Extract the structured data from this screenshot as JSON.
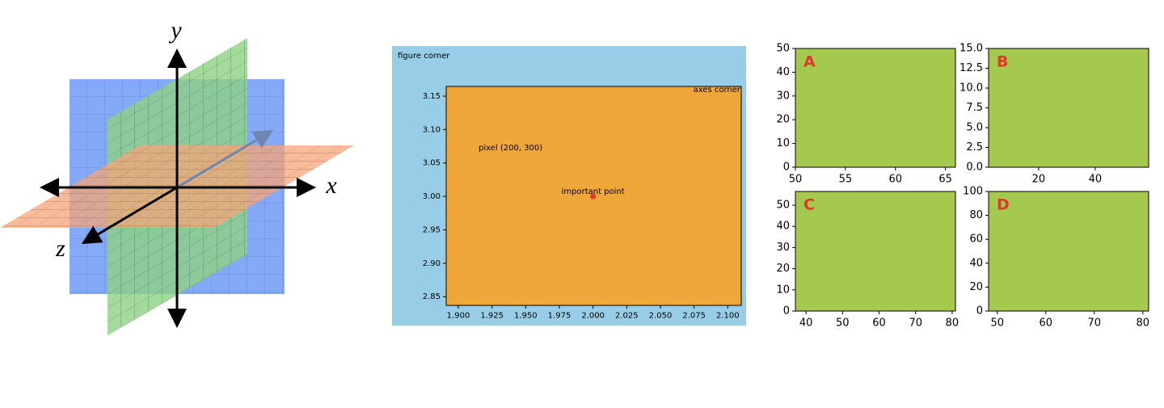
{
  "diagram": {
    "axis_labels": [
      "y",
      "x",
      "z"
    ]
  },
  "chart_data": [
    {
      "type": "scatter",
      "figure_color": "#97cde6",
      "facecolor": "#f0a73a",
      "annotations": [
        "figure corner",
        "axes corner",
        "pixel (200, 300)",
        "important point"
      ],
      "x": [
        2.0
      ],
      "values": [
        3.0
      ],
      "color": "#e0392b",
      "xlim": [
        1.891,
        2.11
      ],
      "ylim": [
        2.837,
        3.1645
      ],
      "xticks": [
        {
          "value": 1.9,
          "label": "1.900"
        },
        1.925,
        {
          "value": 1.95,
          "label": "1.950"
        },
        1.975,
        {
          "value": 2.0,
          "label": "2.000"
        },
        2.025,
        {
          "value": 2.05,
          "label": "2.050"
        },
        2.075,
        {
          "value": 2.1,
          "label": "2.100"
        }
      ],
      "yticks": [
        2.85,
        {
          "value": 2.9,
          "label": "2.90"
        },
        2.95,
        {
          "value": 3.0,
          "label": "3.00"
        },
        3.05,
        {
          "value": 3.1,
          "label": "3.10"
        },
        3.15
      ]
    },
    {
      "type": "scatter",
      "label": "A",
      "facecolor": "#a5c94f",
      "xlim": [
        50,
        66
      ],
      "ylim": [
        0,
        50
      ],
      "xticks": [
        50,
        55,
        60,
        65
      ],
      "yticks": [
        0,
        10,
        20,
        30,
        40,
        50
      ]
    },
    {
      "type": "scatter",
      "label": "B",
      "facecolor": "#a5c94f",
      "xlim": [
        2.3,
        58.9
      ],
      "ylim": [
        0,
        15
      ],
      "xticks": [
        20,
        40
      ],
      "yticks": [
        {
          "value": 0,
          "label": "0.0"
        },
        2.5,
        {
          "value": 5,
          "label": "5.0"
        },
        7.5,
        {
          "value": 10,
          "label": "10.0"
        },
        12.5,
        {
          "value": 15,
          "label": "15.0"
        }
      ]
    },
    {
      "type": "scatter",
      "label": "C",
      "facecolor": "#a5c94f",
      "xlim": [
        37.1,
        80.9
      ],
      "ylim": [
        0,
        56.5
      ],
      "xticks": [
        40,
        50,
        60,
        70,
        80
      ],
      "yticks": [
        0,
        10,
        20,
        30,
        40,
        50
      ]
    },
    {
      "type": "scatter",
      "label": "D",
      "facecolor": "#a5c94f",
      "xlim": [
        48.2,
        81.2
      ],
      "ylim": [
        0,
        100
      ],
      "xticks": [
        50,
        60,
        70,
        80
      ],
      "yticks": [
        0,
        20,
        40,
        60,
        80,
        100
      ]
    }
  ]
}
